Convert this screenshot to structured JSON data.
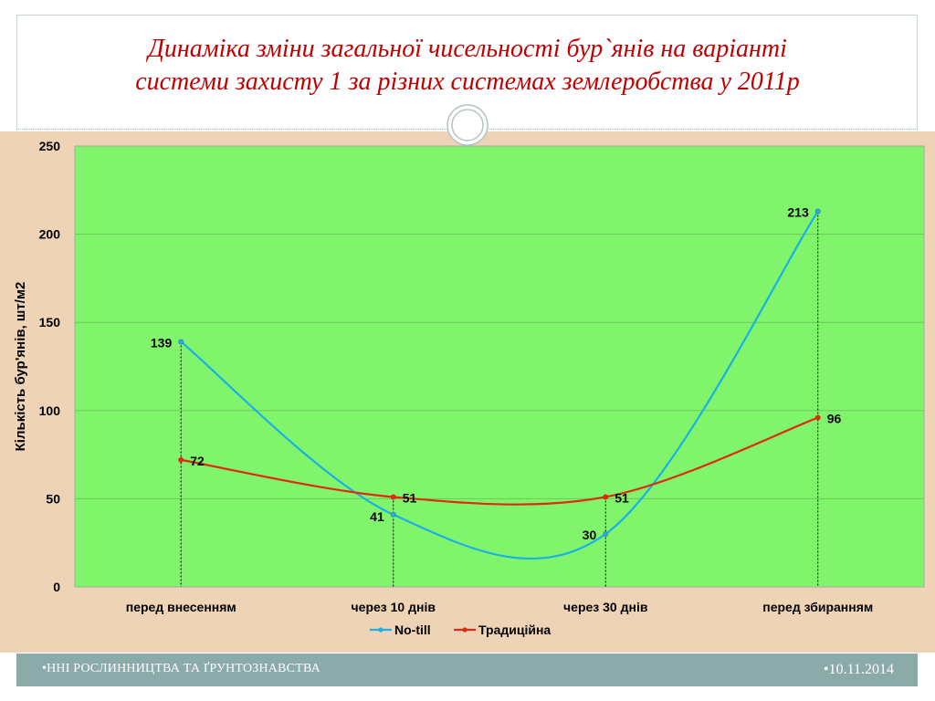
{
  "slide": {
    "title_line1": "Динаміка зміни загальної чисельності бур`янів на варіанті",
    "title_line2": "системи захисту 1 за різних системах землеробства у 2011р",
    "footer_left": "•ННІ РОСЛИННИЦТВА ТА ҐРУНТОЗНАВСТВА",
    "footer_right": "•10.11.2014"
  },
  "colors": {
    "plot_bg": "#80f56b",
    "panel_bg": "#efd3b6",
    "no_till": "#1ab0e6",
    "traditional": "#e02a10",
    "title": "#c00000",
    "footer_bg": "#8aabaa"
  },
  "chart_data": {
    "type": "line",
    "smoothed": true,
    "categories": [
      "перед внесенням",
      "через 10 днів",
      "через 30 днів",
      "перед збиранням"
    ],
    "series": [
      {
        "name": "No-till",
        "values": [
          139,
          41,
          30,
          213
        ],
        "color": "#1ab0e6"
      },
      {
        "name": "Традиційна",
        "values": [
          72,
          51,
          51,
          96
        ],
        "color": "#e02a10"
      }
    ],
    "ylabel": "Кількість бур'янів, шт/м2",
    "xlabel": "",
    "ylim": [
      0,
      250
    ],
    "yticks": [
      0,
      50,
      100,
      150,
      200,
      250
    ],
    "grid": true,
    "drop_lines": true,
    "data_labels": true,
    "legend": "bottom"
  }
}
